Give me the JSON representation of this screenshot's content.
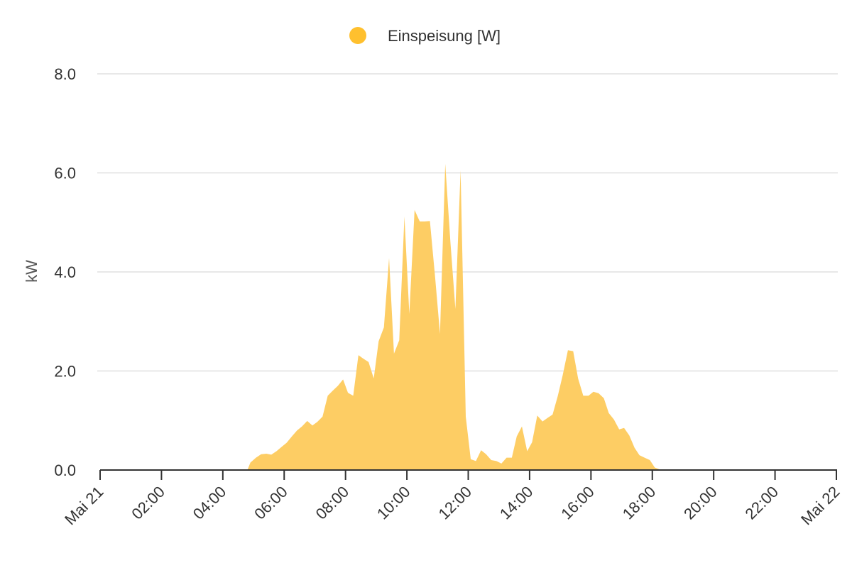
{
  "chart_data": {
    "type": "area",
    "title": "",
    "xlabel": "",
    "ylabel": "kW",
    "ylim": [
      0,
      8
    ],
    "xlim_hours": [
      0,
      24
    ],
    "grid": true,
    "legend_position": "top-center",
    "y_ticks": [
      "0.0",
      "2.0",
      "4.0",
      "6.0",
      "8.0"
    ],
    "x_ticks": [
      "Mai 21",
      "02:00",
      "04:00",
      "06:00",
      "08:00",
      "10:00",
      "12:00",
      "14:00",
      "16:00",
      "18:00",
      "20:00",
      "22:00",
      "Mai 22"
    ],
    "series": [
      {
        "name": "Einspeisung [W]",
        "color": "#ffc02e",
        "fill_color": "#fdcd64",
        "x_hours": [
          0,
          4.8,
          4.9,
          5.08,
          5.25,
          5.42,
          5.58,
          5.75,
          5.92,
          6.08,
          6.25,
          6.42,
          6.58,
          6.75,
          6.92,
          7.08,
          7.25,
          7.42,
          7.58,
          7.75,
          7.92,
          8.08,
          8.25,
          8.42,
          8.58,
          8.75,
          8.92,
          9.08,
          9.25,
          9.42,
          9.58,
          9.75,
          9.92,
          10.08,
          10.25,
          10.42,
          10.58,
          10.75,
          10.92,
          11.08,
          11.25,
          11.42,
          11.58,
          11.75,
          11.92,
          12.08,
          12.25,
          12.42,
          12.58,
          12.75,
          12.92,
          13.08,
          13.25,
          13.42,
          13.58,
          13.75,
          13.92,
          14.08,
          14.25,
          14.42,
          14.58,
          14.75,
          14.92,
          15.08,
          15.25,
          15.42,
          15.58,
          15.75,
          15.92,
          16.08,
          16.25,
          16.42,
          16.58,
          16.75,
          16.92,
          17.08,
          17.25,
          17.42,
          17.58,
          17.75,
          17.92,
          18.08,
          18.25,
          18.4,
          24
        ],
        "values": [
          0,
          0,
          0.15,
          0.25,
          0.32,
          0.33,
          0.31,
          0.38,
          0.47,
          0.55,
          0.68,
          0.8,
          0.88,
          0.99,
          0.9,
          0.97,
          1.08,
          1.5,
          1.6,
          1.7,
          1.83,
          1.56,
          1.5,
          2.32,
          2.25,
          2.18,
          1.85,
          2.6,
          2.88,
          4.28,
          2.35,
          2.62,
          5.12,
          3.15,
          5.25,
          5.02,
          5.02,
          5.03,
          3.9,
          2.75,
          6.18,
          4.6,
          3.25,
          6.05,
          1.08,
          0.22,
          0.18,
          0.4,
          0.32,
          0.2,
          0.18,
          0.13,
          0.25,
          0.25,
          0.68,
          0.88,
          0.38,
          0.56,
          1.1,
          0.98,
          1.05,
          1.12,
          1.5,
          1.92,
          2.42,
          2.4,
          1.85,
          1.5,
          1.5,
          1.58,
          1.55,
          1.45,
          1.15,
          1.02,
          0.82,
          0.85,
          0.7,
          0.45,
          0.3,
          0.25,
          0.2,
          0.05,
          0.01,
          0,
          0
        ]
      }
    ]
  }
}
